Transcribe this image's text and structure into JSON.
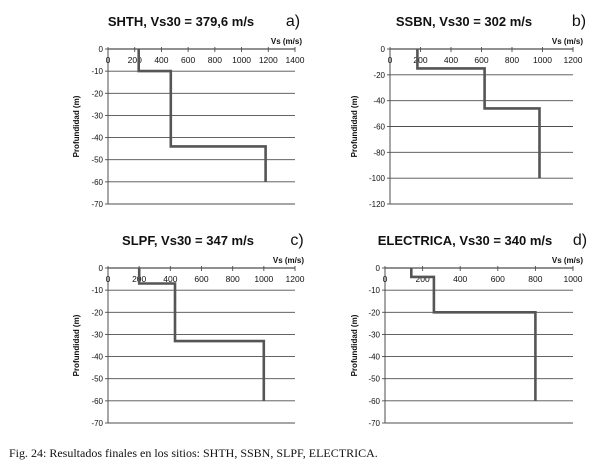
{
  "caption": "Fig. 24: Resultados finales en los sitios: SHTH, SSBN, SLPF, ELECTRICA.",
  "colors": {
    "line": "#555555",
    "grid": "#4d4d4d",
    "text": "#111111"
  },
  "chart_data": [
    {
      "type": "line",
      "title": "SHTH, Vs30 = 379,6 m/s",
      "panel_label": "a)",
      "xlabel": "Vs (m/s)",
      "ylabel": "Profundidad (m)",
      "xlim": [
        0,
        1400
      ],
      "ylim": [
        -70,
        0
      ],
      "xticks": [
        0,
        200,
        400,
        600,
        800,
        1000,
        1200,
        1400
      ],
      "yticks": [
        0,
        -10,
        -20,
        -30,
        -40,
        -50,
        -60,
        -70
      ],
      "grid": "horizontal",
      "series": [
        {
          "x": [
            230,
            230,
            470,
            470,
            1180,
            1180
          ],
          "y": [
            0,
            -10,
            -10,
            -44,
            -44,
            -60
          ]
        }
      ]
    },
    {
      "type": "line",
      "title": "SSBN, Vs30 = 302 m/s",
      "panel_label": "b)",
      "xlabel": "Vs (m/s)",
      "ylabel": "Profundidad (m)",
      "xlim": [
        0,
        1200
      ],
      "ylim": [
        -120,
        0
      ],
      "xticks": [
        0,
        200,
        400,
        600,
        800,
        1000,
        1200
      ],
      "yticks": [
        0,
        -20,
        -40,
        -60,
        -80,
        -100,
        -120
      ],
      "grid": "horizontal",
      "series": [
        {
          "x": [
            180,
            180,
            620,
            620,
            980,
            980
          ],
          "y": [
            0,
            -15,
            -15,
            -46,
            -46,
            -100
          ]
        }
      ]
    },
    {
      "type": "line",
      "title": "SLPF, Vs30 = 347 m/s",
      "panel_label": "c)",
      "xlabel": "Vs (m/s)",
      "ylabel": "Profundidad (m)",
      "xlim": [
        0,
        1200
      ],
      "ylim": [
        -70,
        0
      ],
      "xticks": [
        0,
        200,
        400,
        600,
        800,
        1000,
        1200
      ],
      "yticks": [
        0,
        -10,
        -20,
        -30,
        -40,
        -50,
        -60,
        -70
      ],
      "grid": "horizontal",
      "series": [
        {
          "x": [
            200,
            200,
            430,
            430,
            1000,
            1000
          ],
          "y": [
            0,
            -7,
            -7,
            -33,
            -33,
            -60
          ]
        }
      ]
    },
    {
      "type": "line",
      "title": "ELECTRICA, Vs30 = 340 m/s",
      "panel_label": "d)",
      "xlabel": "Vs (m/s)",
      "ylabel": "Profundidad (m)",
      "xlim": [
        0,
        1000
      ],
      "ylim": [
        -70,
        0
      ],
      "xticks": [
        0,
        200,
        400,
        600,
        800,
        1000
      ],
      "yticks": [
        0,
        -10,
        -20,
        -30,
        -40,
        -50,
        -60,
        -70
      ],
      "grid": "horizontal",
      "series": [
        {
          "x": [
            140,
            140,
            260,
            260,
            800,
            800
          ],
          "y": [
            0,
            -4,
            -4,
            -20,
            -20,
            -60
          ]
        }
      ]
    }
  ]
}
